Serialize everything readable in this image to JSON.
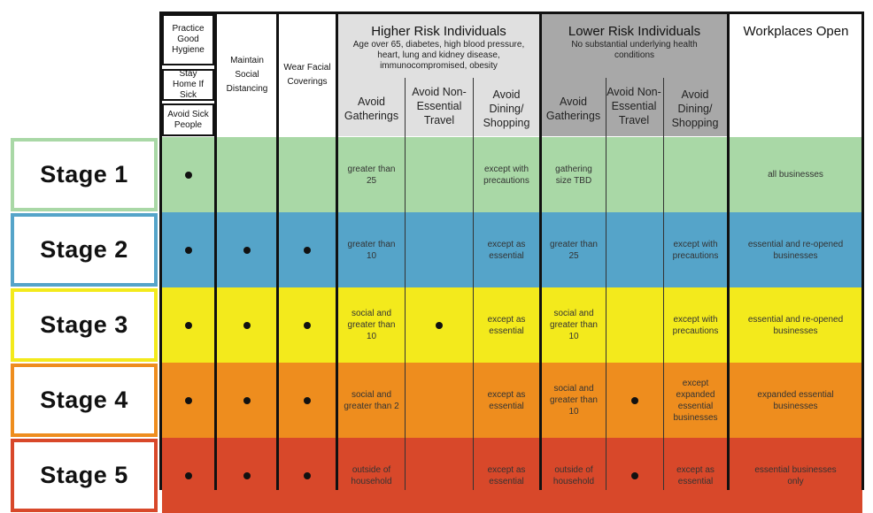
{
  "header": {
    "hygiene": [
      "Practice Good Hygiene",
      "Stay Home If Sick",
      "Avoid Sick People"
    ],
    "social_distancing": "Maintain Social Distancing",
    "face_coverings": "Wear Facial Coverings",
    "higher_risk": {
      "title": "Higher Risk Individuals",
      "subtitle": "Age over 65, diabetes, high blood pressure, heart, lung and kidney disease, immunocompromised, obesity",
      "cols": [
        "Avoid Gatherings",
        "Avoid Non-Essential Travel",
        "Avoid Dining/ Shopping"
      ]
    },
    "lower_risk": {
      "title": "Lower Risk Individuals",
      "subtitle": "No substantial underlying health conditions",
      "cols": [
        "Avoid Gatherings",
        "Avoid Non-Essential Travel",
        "Avoid Dining/ Shopping"
      ]
    },
    "workplaces": "Workplaces Open"
  },
  "colors": {
    "stage1": "#a9d8a6",
    "stage2": "#55a4c9",
    "stage3": "#f3ea1c",
    "stage4": "#ee8d1e",
    "stage5": "#d8482a",
    "higher_hdr": "#e0e0e0",
    "lower_hdr": "#a8a8a8"
  },
  "stages": [
    {
      "label": "Stage 1",
      "cells": [
        "dot",
        "",
        "",
        "greater than 25",
        "",
        "except with precautions",
        "gathering size TBD",
        "",
        "",
        "all businesses"
      ]
    },
    {
      "label": "Stage 2",
      "cells": [
        "dot",
        "dot",
        "dot",
        "greater than 10",
        "",
        "except as essential",
        "greater than 25",
        "",
        "except with precautions",
        "essential and re-opened businesses"
      ]
    },
    {
      "label": "Stage 3",
      "cells": [
        "dot",
        "dot",
        "dot",
        "social and greater than 10",
        "dot",
        "except as essential",
        "social and greater than 10",
        "",
        "except with precautions",
        "essential and re-opened businesses"
      ]
    },
    {
      "label": "Stage 4",
      "cells": [
        "dot",
        "dot",
        "dot",
        "social and greater than 2",
        "",
        "except as essential",
        "social and greater than 10",
        "dot",
        "except expanded essential businesses",
        "expanded essential businesses"
      ]
    },
    {
      "label": "Stage 5",
      "cells": [
        "dot",
        "dot",
        "dot",
        "outside of household",
        "",
        "except as essential",
        "outside of household",
        "dot",
        "except as essential",
        "essential businesses only"
      ]
    }
  ]
}
